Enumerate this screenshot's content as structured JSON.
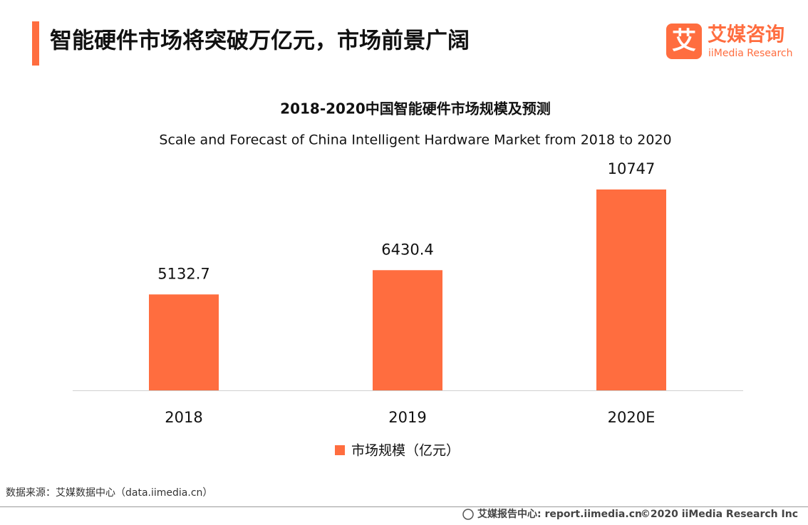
{
  "header": {
    "title": "智能硬件市场将突破万亿元，市场前景广阔",
    "logo_icon": "艾",
    "logo_name": "艾媒咨询",
    "logo_sub": "iiMedia Research"
  },
  "chart_data": {
    "type": "bar",
    "title": "2018-2020中国智能硬件市场规模及预测",
    "subtitle": "Scale and Forecast of China Intelligent Hardware Market from 2018 to 2020",
    "categories": [
      "2018",
      "2019",
      "2020E"
    ],
    "series": [
      {
        "name": "市场规模（亿元）",
        "color": "#ff6d3f",
        "values": [
          5132.7,
          6430.4,
          10747
        ]
      }
    ]
  },
  "source": "数据来源：艾媒数据中心（data.iimedia.cn）",
  "footer": {
    "report": "艾媒报告中心: report.iimedia.cn",
    "copyright": "©2020  iiMedia Research  Inc"
  }
}
